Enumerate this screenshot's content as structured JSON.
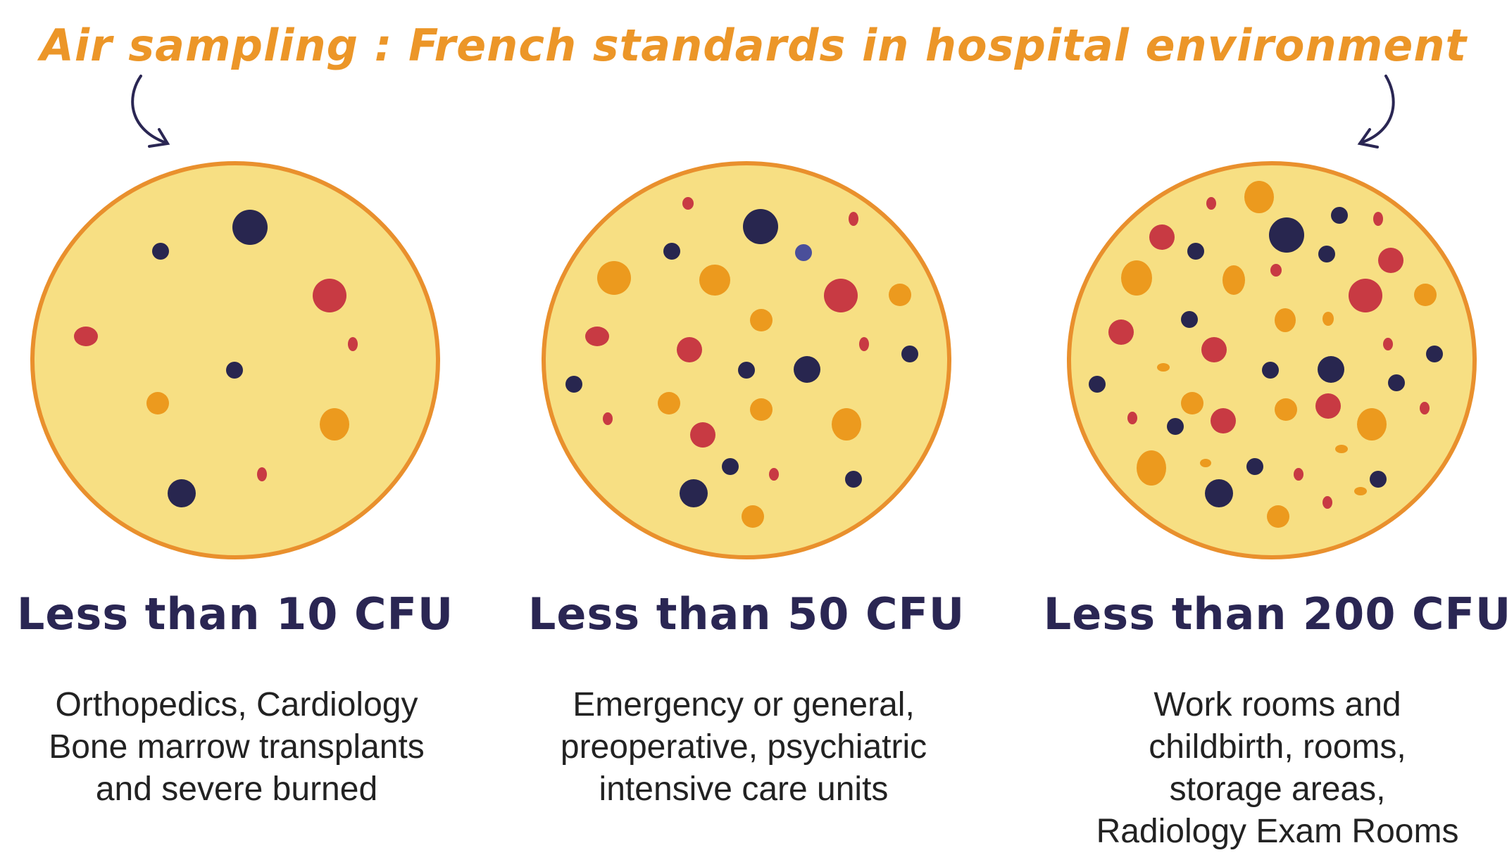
{
  "title": "Air sampling : French standards in hospital environment",
  "colors": {
    "title": "#ec9628",
    "heading": "#2a2653",
    "plate_fill": "#f7df83",
    "plate_border": "#e9902d",
    "colony_navy": "#28264f",
    "colony_red": "#c83a43",
    "colony_orange": "#ec9a1e",
    "colony_blue": "#4a4f9a"
  },
  "arrows": [
    "curved-arrow-left-icon",
    "curved-arrow-right-icon"
  ],
  "plates": [
    {
      "label": "Less than 10 CFU",
      "description": [
        "Orthopedics, Cardiology",
        "Bone marrow transplants",
        "and severe burned"
      ]
    },
    {
      "label": "Less than 50 CFU",
      "description": [
        "Emergency or general,",
        "preoperative, psychiatric",
        "intensive care units"
      ]
    },
    {
      "label": "Less than 200 CFU",
      "description": [
        "Work rooms and",
        "childbirth, rooms,",
        "storage areas,",
        "Radiology Exam Rooms"
      ]
    }
  ]
}
